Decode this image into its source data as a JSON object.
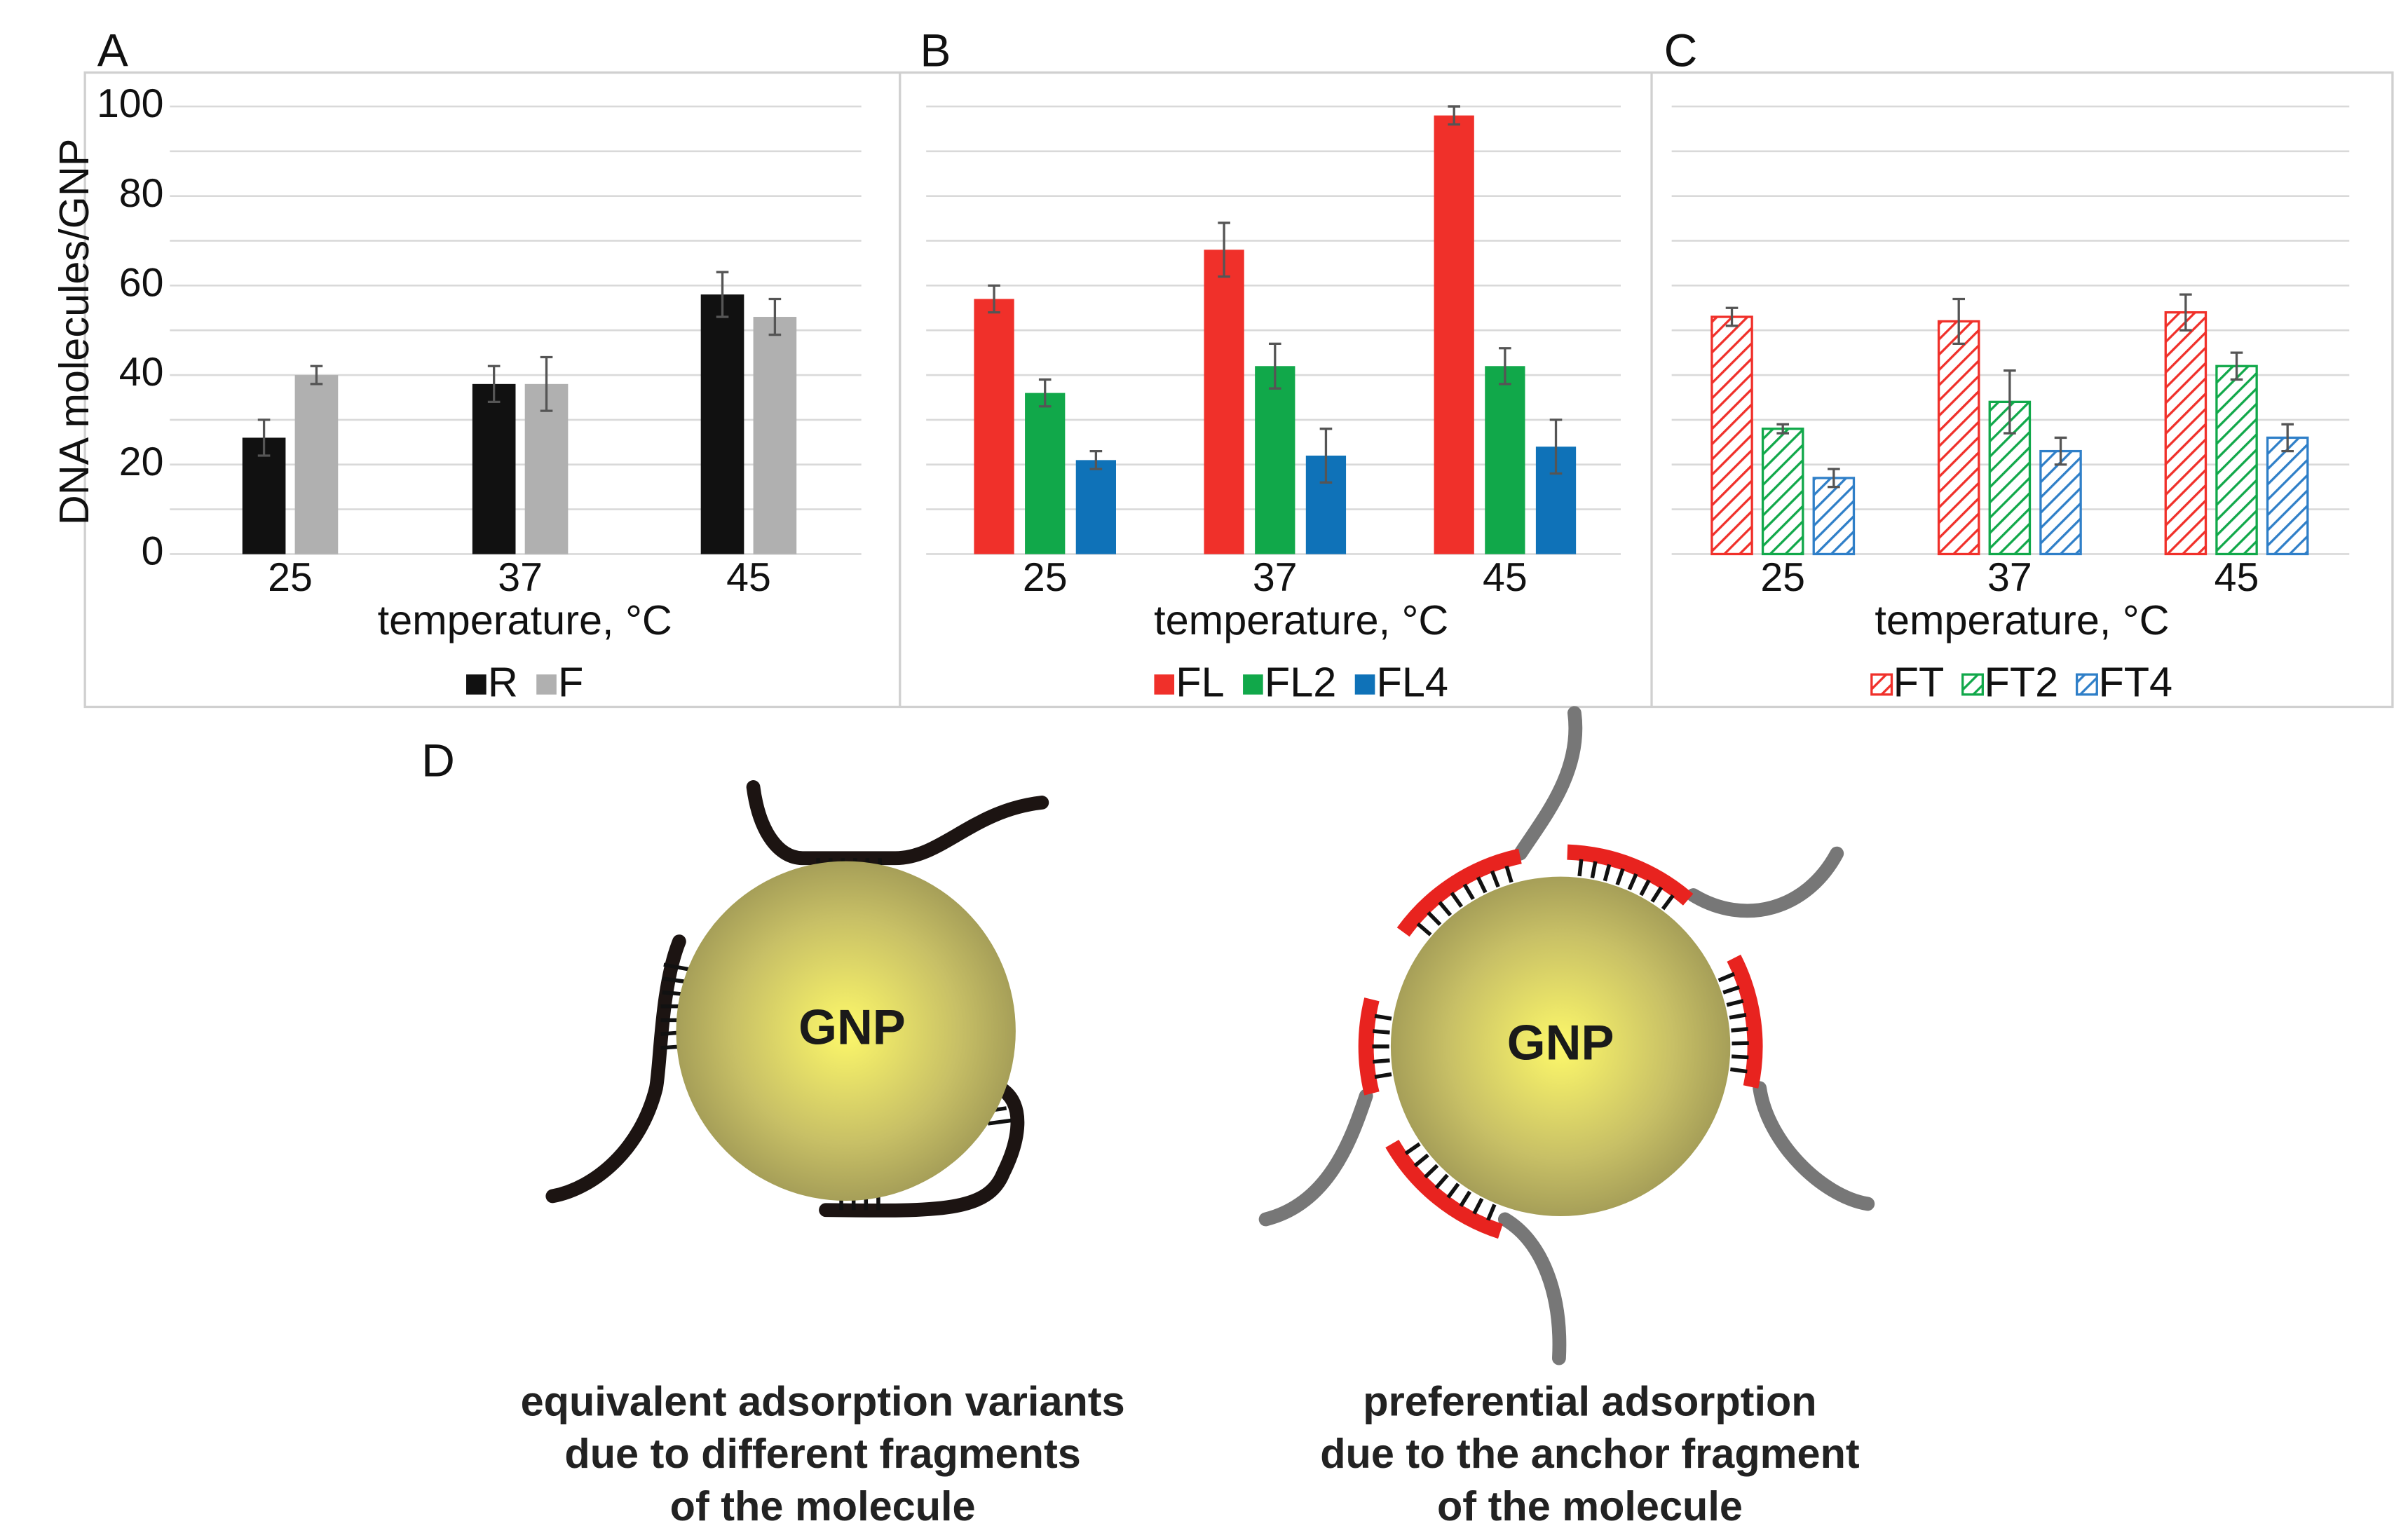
{
  "chart_data": [
    {
      "type": "bar",
      "panel_label": "A",
      "ylabel": "DNA molecules/GNP",
      "xlabel": "temperature, °C",
      "categories": [
        "25",
        "37",
        "45"
      ],
      "series": [
        {
          "name": "R",
          "color": "#111111",
          "values": [
            26,
            38,
            58
          ],
          "errors": [
            4,
            4,
            5
          ]
        },
        {
          "name": "F",
          "color": "#b0b0b0",
          "values": [
            40,
            38,
            53
          ],
          "errors": [
            2,
            6,
            4
          ]
        }
      ],
      "ylim": [
        0,
        100
      ],
      "yticks": [
        0,
        20,
        40,
        60,
        80,
        100
      ],
      "grid_values": [
        0,
        10,
        20,
        30,
        40,
        50,
        60,
        70,
        80,
        90,
        100
      ],
      "hatched": false
    },
    {
      "type": "bar",
      "panel_label": "B",
      "xlabel": "temperature, °C",
      "categories": [
        "25",
        "37",
        "45"
      ],
      "series": [
        {
          "name": "FL",
          "color": "#f0302a",
          "values": [
            57,
            68,
            98
          ],
          "errors": [
            3,
            6,
            2
          ]
        },
        {
          "name": "FL2",
          "color": "#11a84a",
          "values": [
            36,
            42,
            42
          ],
          "errors": [
            3,
            5,
            4
          ]
        },
        {
          "name": "FL4",
          "color": "#0f72b8",
          "values": [
            21,
            22,
            24
          ],
          "errors": [
            2,
            6,
            6
          ]
        }
      ],
      "ylim": [
        0,
        100
      ],
      "grid_values": [
        0,
        10,
        20,
        30,
        40,
        50,
        60,
        70,
        80,
        90,
        100
      ],
      "hatched": false
    },
    {
      "type": "bar",
      "panel_label": "C",
      "xlabel": "temperature, °C",
      "categories": [
        "25",
        "37",
        "45"
      ],
      "series": [
        {
          "name": "FT",
          "color": "#f0302a",
          "values": [
            53,
            52,
            54
          ],
          "errors": [
            2,
            5,
            4
          ]
        },
        {
          "name": "FT2",
          "color": "#11a84a",
          "values": [
            28,
            34,
            42
          ],
          "errors": [
            1,
            7,
            3
          ]
        },
        {
          "name": "FT4",
          "color": "#2f7fc8",
          "values": [
            17,
            23,
            26
          ],
          "errors": [
            2,
            3,
            3
          ]
        }
      ],
      "ylim": [
        0,
        100
      ],
      "grid_values": [
        0,
        10,
        20,
        30,
        40,
        50,
        60,
        70,
        80,
        90,
        100
      ],
      "hatched": true
    }
  ],
  "diagram": {
    "panel_label": "D",
    "particles": [
      {
        "label": "GNP",
        "caption": [
          "equivalent adsorption variants",
          "due to different fragments",
          "of the molecule"
        ]
      },
      {
        "label": "GNP",
        "caption": [
          "preferential adsorption",
          "due to the anchor fragment",
          "of the molecule"
        ]
      }
    ]
  }
}
